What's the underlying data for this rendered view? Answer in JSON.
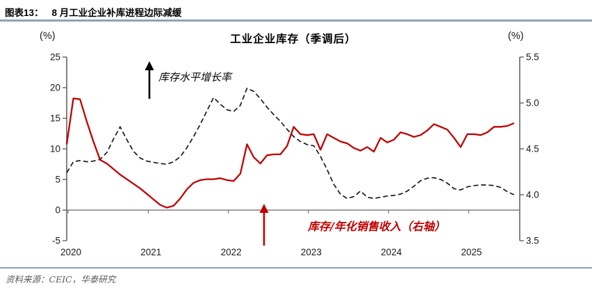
{
  "figure": {
    "label": "图表13：",
    "title": "8 月工业企业补库进程边际减缓"
  },
  "chart": {
    "title": "工业企业库存（季调后）",
    "left_unit": "(%)",
    "right_unit": "(%)",
    "annotation_black": "库存水平增长率",
    "annotation_red": "库存/年化销售收入（右轴）"
  },
  "source": {
    "text": "资料来源：CEIC，华泰研究"
  },
  "colors": {
    "red_series": "#c00000",
    "black_series": "#1a1a1a",
    "axis": "#595959",
    "zero_line": "#808080",
    "rule": "#8da2b5",
    "source_text": "#595959"
  },
  "chart_data": {
    "type": "line",
    "title": "工业企业库存（季调后）",
    "x_unit": "month",
    "x_range": [
      "2020-01",
      "2025-08"
    ],
    "x_tick_labels": [
      "2020",
      "2021",
      "2022",
      "2023",
      "2024",
      "2025"
    ],
    "left_axis": {
      "unit": "(%)",
      "min": -5,
      "max": 25,
      "ticks": [
        "25",
        "20",
        "15",
        "10",
        "5",
        "0",
        "-5"
      ]
    },
    "right_axis": {
      "unit": "(%)",
      "min": 3.5,
      "max": 5.5,
      "ticks": [
        "5.5",
        "5.0",
        "4.5",
        "4.0",
        "3.5"
      ]
    },
    "grid": false,
    "legend": "annotations-with-arrows",
    "series": [
      {
        "name": "库存水平增长率",
        "axis": "left",
        "line_style": "dashed",
        "color": "#1a1a1a",
        "values": [
          6.1,
          7.9,
          8.1,
          7.9,
          8.0,
          8.3,
          9.4,
          11.6,
          13.6,
          11.5,
          9.6,
          8.5,
          8.0,
          7.8,
          7.6,
          7.5,
          7.9,
          8.7,
          10.2,
          12.0,
          14.0,
          16.2,
          18.4,
          17.3,
          16.4,
          16.1,
          17.1,
          19.9,
          19.4,
          18.2,
          16.8,
          15.6,
          14.5,
          13.2,
          12.0,
          11.2,
          10.7,
          10.5,
          8.8,
          6.6,
          4.2,
          2.6,
          1.9,
          2.2,
          3.1,
          2.1,
          1.9,
          2.1,
          2.3,
          2.4,
          2.6,
          3.1,
          3.9,
          4.8,
          5.2,
          5.3,
          5.0,
          4.4,
          3.5,
          3.3,
          3.8,
          4.0,
          4.1,
          4.1,
          4.0,
          3.7,
          3.0,
          2.5
        ]
      },
      {
        "name": "库存/年化销售收入（右轴）",
        "axis": "right",
        "line_style": "solid",
        "color": "#c00000",
        "values": [
          4.55,
          5.05,
          5.04,
          4.8,
          4.58,
          4.38,
          4.34,
          4.28,
          4.22,
          4.17,
          4.12,
          4.07,
          4.01,
          3.95,
          3.89,
          3.86,
          3.88,
          3.96,
          4.06,
          4.13,
          4.16,
          4.17,
          4.17,
          4.18,
          4.16,
          4.15,
          4.23,
          4.55,
          4.41,
          4.34,
          4.43,
          4.44,
          4.44,
          4.53,
          4.74,
          4.66,
          4.65,
          4.66,
          4.49,
          4.66,
          4.62,
          4.58,
          4.56,
          4.51,
          4.48,
          4.52,
          4.47,
          4.62,
          4.57,
          4.6,
          4.68,
          4.66,
          4.63,
          4.65,
          4.7,
          4.77,
          4.74,
          4.71,
          4.62,
          4.52,
          4.66,
          4.66,
          4.65,
          4.68,
          4.74,
          4.74,
          4.75,
          4.78
        ]
      }
    ]
  }
}
